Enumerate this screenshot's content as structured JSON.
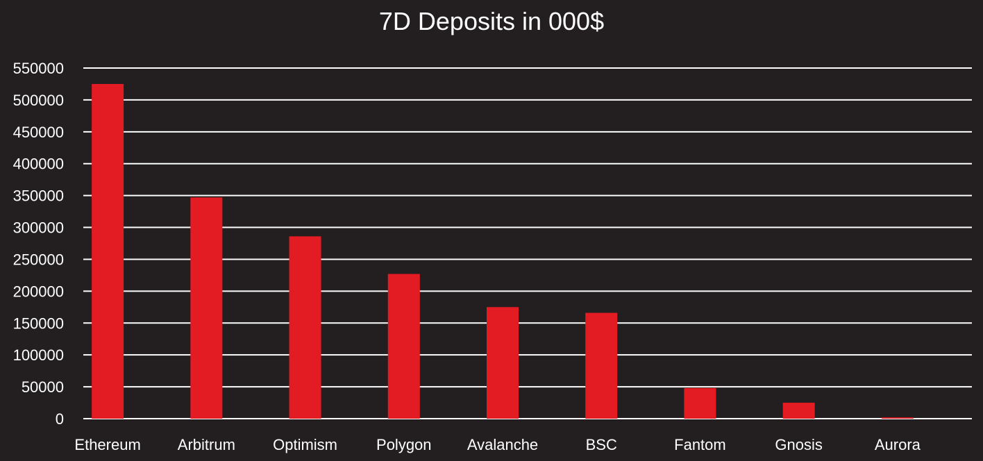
{
  "chart_data": {
    "type": "bar",
    "title": "7D Deposits in 000$",
    "xlabel": "",
    "ylabel": "",
    "categories": [
      "Ethereum",
      "Arbitrum",
      "Optimism",
      "Polygon",
      "Avalanche",
      "BSC",
      "Fantom",
      "Gnosis",
      "Aurora"
    ],
    "values": [
      525000,
      347000,
      286000,
      227000,
      175000,
      166000,
      48000,
      25000,
      2000
    ],
    "ylim": [
      0,
      550000
    ],
    "yticks": [
      0,
      50000,
      100000,
      150000,
      200000,
      250000,
      300000,
      350000,
      400000,
      450000,
      500000,
      550000
    ],
    "grid": true,
    "legend": "none",
    "colors": {
      "background": "#231f20",
      "bar": "#e31b23",
      "grid": "#ffffff",
      "text": "#ffffff"
    }
  }
}
